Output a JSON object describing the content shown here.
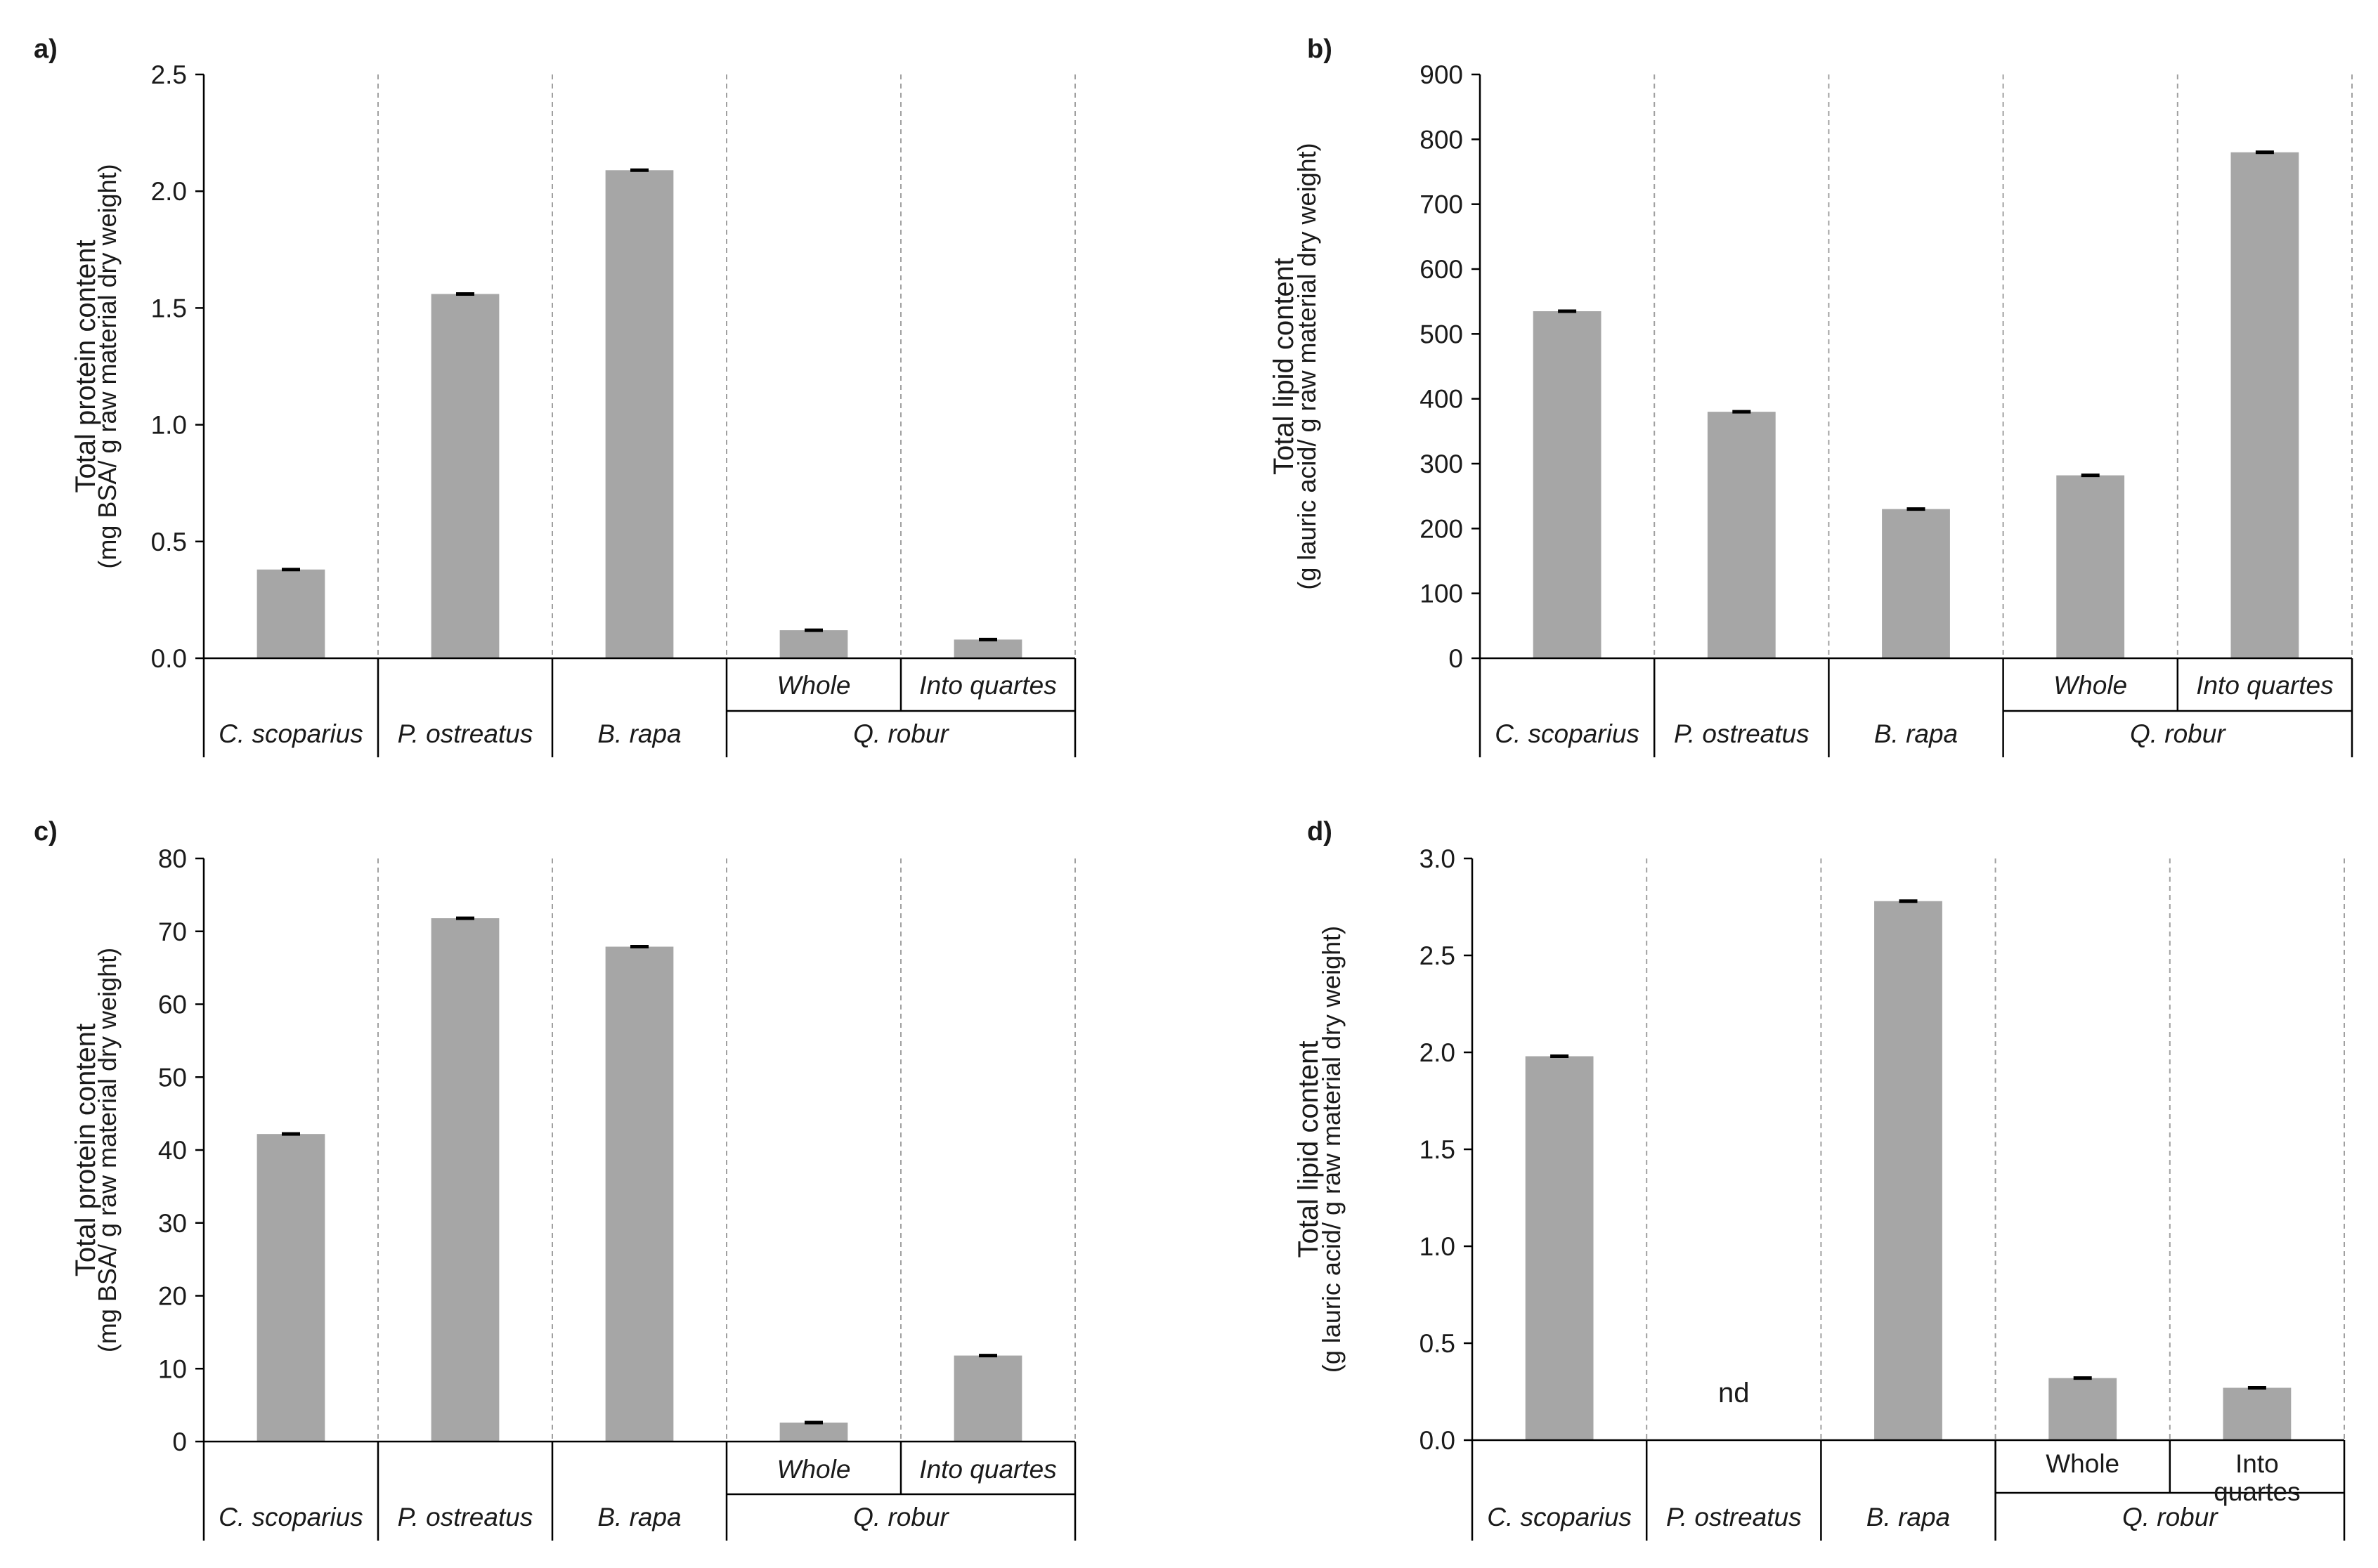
{
  "figure": {
    "bar_color": "#a6a6a6",
    "axis_color": "#000000",
    "grid_color": "#a0a0a0"
  },
  "chart_data": [
    {
      "panel_label": "a)",
      "type": "bar",
      "ylabel": "Total protein content",
      "ylabel_sub": "(mg BSA/ g raw material dry weight)",
      "ylim": [
        0,
        2.5
      ],
      "yticks": [
        "0.0",
        "0.5",
        "1.0",
        "1.5",
        "2.0",
        "2.5"
      ],
      "categories": [
        "C. scoparius",
        "P. ostreatus",
        "B. rapa",
        "Q. robur Whole",
        "Q. robur Into quartes"
      ],
      "values": [
        0.38,
        1.56,
        2.09,
        0.12,
        0.08
      ],
      "group_labels": [
        "C. scoparius",
        "P. ostreatus",
        "B. rapa",
        "Q. robur"
      ],
      "sub_labels": [
        "Whole",
        "Into quartes"
      ],
      "error": [
        0.005,
        0.005,
        0.005,
        0.005,
        0.005
      ]
    },
    {
      "panel_label": "b)",
      "type": "bar",
      "ylabel": "Total lipid content",
      "ylabel_sub": "(g lauric acid/ g raw material dry weight)",
      "ylim": [
        0,
        900
      ],
      "yticks": [
        "0",
        "100",
        "200",
        "300",
        "400",
        "500",
        "600",
        "700",
        "800",
        "900"
      ],
      "categories": [
        "C. scoparius",
        "P. ostreatus",
        "B. rapa",
        "Q. robur Whole",
        "Q. robur Into quartes"
      ],
      "values": [
        535,
        380,
        230,
        282,
        780
      ],
      "group_labels": [
        "C. scoparius",
        "P. ostreatus",
        "B. rapa",
        "Q. robur"
      ],
      "sub_labels": [
        "Whole",
        "Into quartes"
      ],
      "error": [
        2,
        2,
        2,
        2,
        2
      ]
    },
    {
      "panel_label": "c)",
      "type": "bar",
      "ylabel": "Total protein content",
      "ylabel_sub": "(mg BSA/ g raw material dry weight)",
      "ylim": [
        0,
        80
      ],
      "yticks": [
        "0",
        "10",
        "20",
        "30",
        "40",
        "50",
        "60",
        "70",
        "80"
      ],
      "categories": [
        "C. scoparius",
        "P. ostreatus",
        "B. rapa",
        "Q. robur Whole",
        "Q. robur Into quartes"
      ],
      "values": [
        42.2,
        71.8,
        67.9,
        2.6,
        11.8
      ],
      "group_labels": [
        "C. scoparius",
        "P. ostreatus",
        "B. rapa",
        "Q. robur"
      ],
      "sub_labels": [
        "Whole",
        "Into quartes"
      ],
      "error": [
        0.15,
        0.15,
        0.15,
        0.15,
        0.15
      ]
    },
    {
      "panel_label": "d)",
      "type": "bar",
      "ylabel": "Total lipid content",
      "ylabel_sub": "(g lauric acid/ g raw material dry weight)",
      "ylim": [
        0,
        3.0
      ],
      "yticks": [
        "0.0",
        "0.5",
        "1.0",
        "1.5",
        "2.0",
        "2.5",
        "3.0"
      ],
      "categories": [
        "C. scoparius",
        "P. ostreatus",
        "B. rapa",
        "Q. robur Whole",
        "Q. robur Into quartes"
      ],
      "values": [
        1.98,
        null,
        2.78,
        0.32,
        0.27
      ],
      "group_labels": [
        "C. scoparius",
        "P. ostreatus",
        "B. rapa",
        "Q. robur"
      ],
      "sub_labels": [
        "Whole",
        "Into\nquartes"
      ],
      "error": [
        0.006,
        0,
        0.006,
        0.006,
        0.006
      ],
      "annotations": [
        {
          "category_index": 1,
          "text": "nd"
        }
      ]
    }
  ]
}
